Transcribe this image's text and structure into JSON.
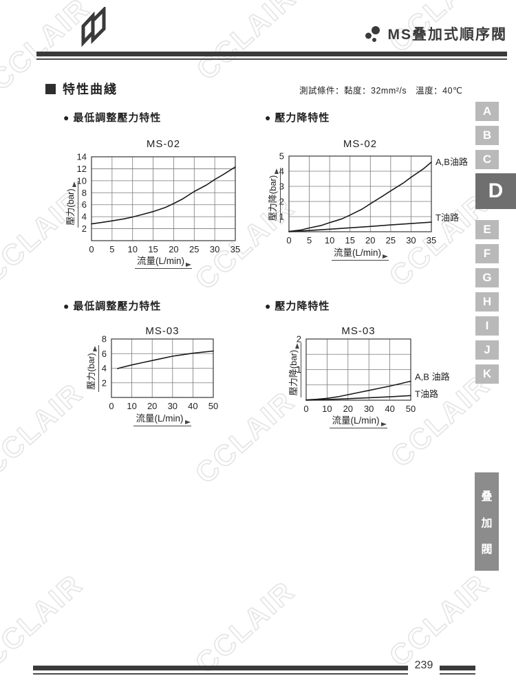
{
  "header": {
    "title": "MS叠加式順序閥"
  },
  "section": {
    "title": "特性曲綫",
    "test_conditions": "測試條件：黏度：32mm²/s　溫度：40℃"
  },
  "page_number": "239",
  "watermark_text": "CCLAIR",
  "sidebar": {
    "tabs": [
      {
        "label": "A"
      },
      {
        "label": "B"
      },
      {
        "label": "C"
      },
      {
        "label": "D"
      },
      {
        "label": "E"
      },
      {
        "label": "F"
      },
      {
        "label": "G"
      },
      {
        "label": "H"
      },
      {
        "label": "I"
      },
      {
        "label": "J"
      },
      {
        "label": "K"
      }
    ],
    "active_tab": "D",
    "vertical_tab_chars": [
      "叠",
      "加",
      "閥"
    ]
  },
  "chart_data": [
    {
      "type": "line",
      "subtitle": "最低調整壓力特性",
      "title": "MS-02",
      "xlabel": "流量(L/min)",
      "ylabel": "壓力(bar)",
      "xlim": [
        0,
        35
      ],
      "ylim": [
        0,
        14
      ],
      "xticks": [
        0,
        5,
        10,
        15,
        20,
        25,
        30,
        35
      ],
      "yticks": [
        2,
        4,
        6,
        8,
        10,
        12,
        14
      ],
      "grid": true,
      "legend_position": "none",
      "series": [
        {
          "name": "",
          "points": [
            [
              0,
              2.8
            ],
            [
              2,
              3.0
            ],
            [
              5,
              3.3
            ],
            [
              8,
              3.65
            ],
            [
              10,
              3.95
            ],
            [
              12,
              4.3
            ],
            [
              15,
              4.85
            ],
            [
              18,
              5.55
            ],
            [
              20,
              6.2
            ],
            [
              22,
              6.9
            ],
            [
              25,
              8.2
            ],
            [
              28,
              9.3
            ],
            [
              30,
              10.2
            ],
            [
              32,
              11.0
            ],
            [
              35,
              12.3
            ]
          ]
        }
      ]
    },
    {
      "type": "line",
      "subtitle": "壓力降特性",
      "title": "MS-02",
      "xlabel": "流量(L/min)",
      "ylabel": "壓力降(bar)",
      "xlim": [
        0,
        35
      ],
      "ylim": [
        0,
        5
      ],
      "xticks": [
        0,
        5,
        10,
        15,
        20,
        25,
        30,
        35
      ],
      "yticks": [
        1,
        2,
        3,
        4,
        5
      ],
      "grid": true,
      "legend_position": "right-of-curve-end",
      "series": [
        {
          "name": "A,B油路",
          "label_dy": 0,
          "points": [
            [
              0,
              0.02
            ],
            [
              3,
              0.12
            ],
            [
              5,
              0.25
            ],
            [
              8,
              0.42
            ],
            [
              10,
              0.6
            ],
            [
              13,
              0.85
            ],
            [
              15,
              1.1
            ],
            [
              18,
              1.5
            ],
            [
              20,
              1.85
            ],
            [
              23,
              2.35
            ],
            [
              25,
              2.7
            ],
            [
              28,
              3.2
            ],
            [
              30,
              3.6
            ],
            [
              33,
              4.15
            ],
            [
              35,
              4.6
            ]
          ]
        },
        {
          "name": "T油路",
          "label_dy": -6,
          "points": [
            [
              0,
              0
            ],
            [
              5,
              0.08
            ],
            [
              10,
              0.17
            ],
            [
              15,
              0.26
            ],
            [
              20,
              0.35
            ],
            [
              25,
              0.45
            ],
            [
              30,
              0.54
            ],
            [
              35,
              0.63
            ]
          ]
        }
      ]
    },
    {
      "type": "line",
      "subtitle": "最低調整壓力特性",
      "title": "MS-03",
      "xlabel": "流量(L/min)",
      "ylabel": "壓力(bar)",
      "xlim": [
        0,
        50
      ],
      "ylim": [
        0,
        8
      ],
      "xticks": [
        0,
        10,
        20,
        30,
        40,
        50
      ],
      "yticks": [
        2,
        4,
        6,
        8
      ],
      "grid": true,
      "legend_position": "none",
      "series": [
        {
          "name": "",
          "points": [
            [
              3,
              3.95
            ],
            [
              5,
              4.1
            ],
            [
              10,
              4.45
            ],
            [
              15,
              4.75
            ],
            [
              20,
              5.05
            ],
            [
              25,
              5.35
            ],
            [
              30,
              5.65
            ],
            [
              35,
              5.85
            ],
            [
              40,
              6.05
            ],
            [
              45,
              6.2
            ],
            [
              50,
              6.35
            ]
          ]
        }
      ]
    },
    {
      "type": "line",
      "subtitle": "壓力降特性",
      "title": "MS-03",
      "xlabel": "流量(L/min)",
      "ylabel": "壓力降(bar)",
      "xlim": [
        0,
        50
      ],
      "ylim": [
        0,
        2
      ],
      "xticks": [
        0,
        10,
        20,
        30,
        40,
        50
      ],
      "yticks": [
        1,
        2
      ],
      "ygrid": [
        0.5,
        1,
        1.5,
        2
      ],
      "grid": true,
      "legend_position": "right-of-curve-end",
      "series": [
        {
          "name": "A,B 油路",
          "label_dy": -6,
          "points": [
            [
              0,
              0.01
            ],
            [
              5,
              0.03
            ],
            [
              10,
              0.06
            ],
            [
              15,
              0.11
            ],
            [
              20,
              0.18
            ],
            [
              25,
              0.25
            ],
            [
              30,
              0.32
            ],
            [
              35,
              0.39
            ],
            [
              40,
              0.46
            ],
            [
              45,
              0.54
            ],
            [
              50,
              0.62
            ]
          ]
        },
        {
          "name": "T油路",
          "label_dy": -2,
          "points": [
            [
              0,
              0
            ],
            [
              10,
              0.02
            ],
            [
              20,
              0.05
            ],
            [
              30,
              0.08
            ],
            [
              40,
              0.11
            ],
            [
              50,
              0.15
            ]
          ]
        }
      ]
    }
  ],
  "colors": {
    "ink": "#3a3a3a",
    "tab_inactive": "#b9b9b9",
    "tab_active": "#6f6f6f",
    "vertical_tab": "#8c8c8c",
    "watermark": "#e4e4e4"
  }
}
